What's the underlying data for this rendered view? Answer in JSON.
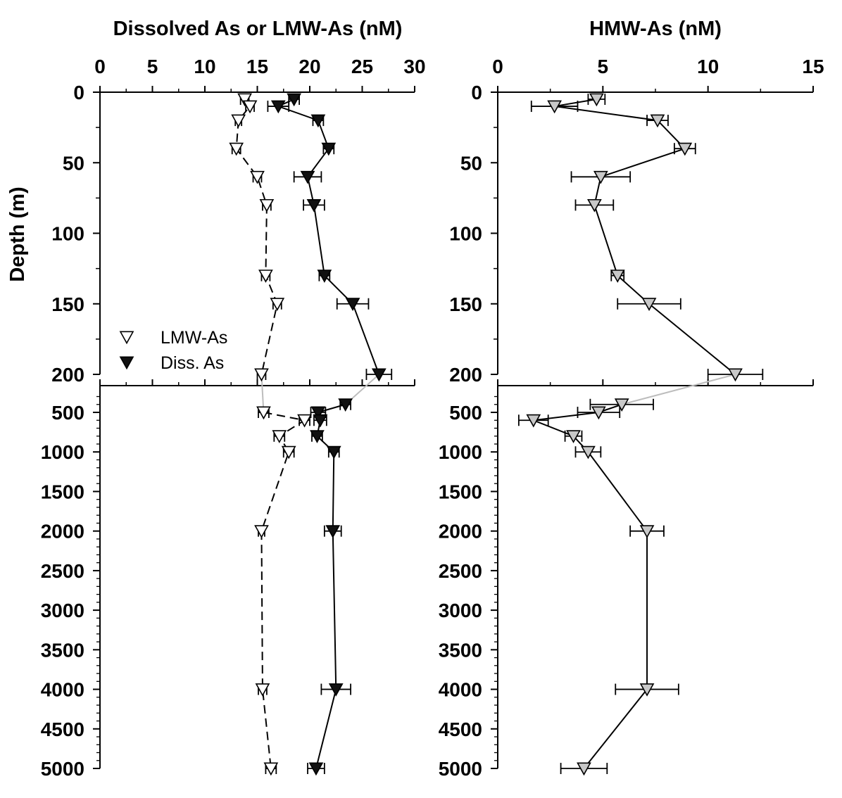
{
  "chart_data": [
    {
      "type": "line",
      "panel": "left",
      "title": "Dissolved As or LMW-As (nM)",
      "ylabel": "Depth (m)",
      "x_axis_position": "top",
      "y_axis_inverted": true,
      "y_axis_broken": true,
      "xlim": [
        0,
        30
      ],
      "x_ticks": [
        "0",
        "5",
        "10",
        "15",
        "20",
        "25",
        "30"
      ],
      "ylim_upper": [
        0,
        200
      ],
      "ylim_lower": [
        200,
        5000
      ],
      "y_ticks_upper": [
        "0",
        "50",
        "100",
        "150",
        "200"
      ],
      "y_ticks_lower": [
        "500",
        "1000",
        "1500",
        "2000",
        "2500",
        "3000",
        "3500",
        "4000",
        "4500",
        "5000"
      ],
      "legend": {
        "position": "lower-left",
        "entries": [
          "LMW-As",
          "Diss. As"
        ]
      },
      "series": [
        {
          "name": "LMW-As",
          "marker": "open-down-triangle",
          "line": "dashed",
          "points": [
            {
              "depth": 5,
              "value": 13.8,
              "err": 0.4
            },
            {
              "depth": 10,
              "value": 14.3,
              "err": 0.4
            },
            {
              "depth": 20,
              "value": 13.2,
              "err": 0.3
            },
            {
              "depth": 40,
              "value": 13.0,
              "err": 0.4
            },
            {
              "depth": 60,
              "value": 15.0,
              "err": 0.4
            },
            {
              "depth": 80,
              "value": 15.9,
              "err": 0.4
            },
            {
              "depth": 130,
              "value": 15.8,
              "err": 0.4
            },
            {
              "depth": 150,
              "value": 16.9,
              "err": 0.4
            },
            {
              "depth": 200,
              "value": 15.4,
              "err": 0.4
            },
            {
              "depth": 500,
              "value": 15.6,
              "err": 0.5
            },
            {
              "depth": 600,
              "value": 19.5,
              "err": 0.5
            },
            {
              "depth": 800,
              "value": 17.1,
              "err": 0.5
            },
            {
              "depth": 1000,
              "value": 18.0,
              "err": 0.5
            },
            {
              "depth": 2000,
              "value": 15.4,
              "err": 0.3
            },
            {
              "depth": 4000,
              "value": 15.5,
              "err": 0.4
            },
            {
              "depth": 5000,
              "value": 16.3,
              "err": 0.5
            }
          ]
        },
        {
          "name": "Diss. As",
          "marker": "filled-down-triangle",
          "line": "solid",
          "points": [
            {
              "depth": 5,
              "value": 18.5,
              "err": 0.5
            },
            {
              "depth": 10,
              "value": 17.0,
              "err": 1.0
            },
            {
              "depth": 20,
              "value": 20.8,
              "err": 0.5
            },
            {
              "depth": 40,
              "value": 21.8,
              "err": 0.5
            },
            {
              "depth": 60,
              "value": 19.8,
              "err": 1.3
            },
            {
              "depth": 80,
              "value": 20.4,
              "err": 1.0
            },
            {
              "depth": 130,
              "value": 21.4,
              "err": 0.5
            },
            {
              "depth": 150,
              "value": 24.1,
              "err": 1.5
            },
            {
              "depth": 200,
              "value": 26.6,
              "err": 1.2
            },
            {
              "depth": 400,
              "value": 23.4,
              "err": 0.5
            },
            {
              "depth": 500,
              "value": 20.8,
              "err": 0.7
            },
            {
              "depth": 600,
              "value": 21.0,
              "err": 0.6
            },
            {
              "depth": 800,
              "value": 20.7,
              "err": 0.5
            },
            {
              "depth": 1000,
              "value": 22.3,
              "err": 0.5
            },
            {
              "depth": 2000,
              "value": 22.2,
              "err": 0.8
            },
            {
              "depth": 4000,
              "value": 22.5,
              "err": 1.4
            },
            {
              "depth": 5000,
              "value": 20.6,
              "err": 0.8
            }
          ]
        }
      ]
    },
    {
      "type": "line",
      "panel": "right",
      "title": "HMW-As (nM)",
      "x_axis_position": "top",
      "y_axis_inverted": true,
      "y_axis_broken": true,
      "xlim": [
        0,
        15
      ],
      "x_ticks": [
        "0",
        "5",
        "10",
        "15"
      ],
      "ylim_upper": [
        0,
        200
      ],
      "ylim_lower": [
        200,
        5000
      ],
      "y_ticks_upper": [
        "0",
        "50",
        "100",
        "150",
        "200"
      ],
      "y_ticks_lower": [
        "500",
        "1000",
        "1500",
        "2000",
        "2500",
        "3000",
        "3500",
        "4000",
        "4500",
        "5000"
      ],
      "series": [
        {
          "name": "HMW-As",
          "marker": "gray-down-triangle",
          "line": "solid",
          "points": [
            {
              "depth": 5,
              "value": 4.7,
              "err": 0.4
            },
            {
              "depth": 10,
              "value": 2.7,
              "err": 1.1
            },
            {
              "depth": 20,
              "value": 7.6,
              "err": 0.5
            },
            {
              "depth": 40,
              "value": 8.9,
              "err": 0.5
            },
            {
              "depth": 60,
              "value": 4.9,
              "err": 1.4
            },
            {
              "depth": 80,
              "value": 4.6,
              "err": 0.9
            },
            {
              "depth": 130,
              "value": 5.7,
              "err": 0.3
            },
            {
              "depth": 150,
              "value": 7.2,
              "err": 1.5
            },
            {
              "depth": 200,
              "value": 11.3,
              "err": 1.3
            },
            {
              "depth": 400,
              "value": 5.9,
              "err": 1.5
            },
            {
              "depth": 500,
              "value": 4.8,
              "err": 1.0
            },
            {
              "depth": 600,
              "value": 1.7,
              "err": 0.7
            },
            {
              "depth": 800,
              "value": 3.6,
              "err": 0.4
            },
            {
              "depth": 1000,
              "value": 4.3,
              "err": 0.6
            },
            {
              "depth": 2000,
              "value": 7.1,
              "err": 0.8
            },
            {
              "depth": 4000,
              "value": 7.1,
              "err": 1.5
            },
            {
              "depth": 5000,
              "value": 4.1,
              "err": 1.1
            }
          ]
        }
      ]
    }
  ]
}
